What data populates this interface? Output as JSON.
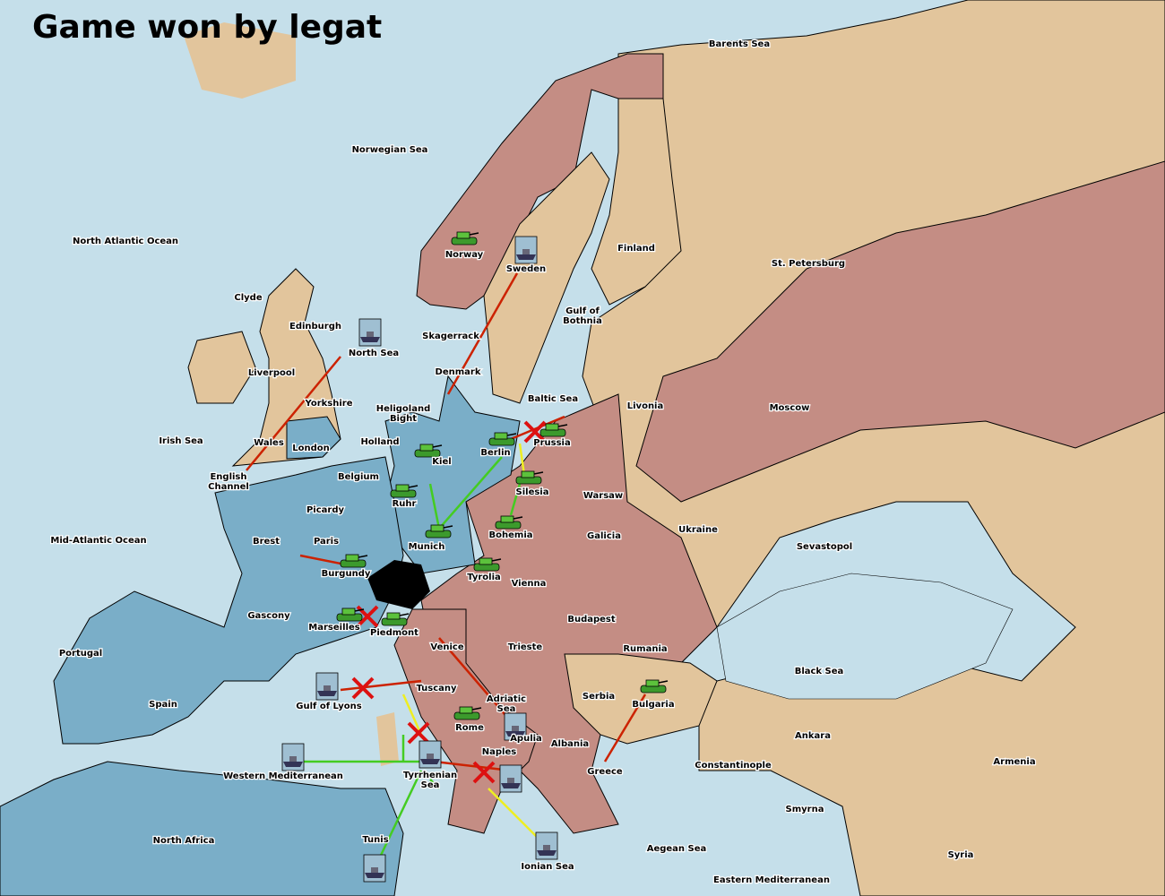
{
  "title": "Game won by legat",
  "colors": {
    "sea": "#c5dfea",
    "neutral_land": "#e2c59c",
    "red_power": "#c48d84",
    "blue_power": "#7aaec8",
    "move": "#cc2200",
    "support": "#44cc22",
    "convoy": "#eeee22",
    "failed": "#dd1111"
  },
  "provinces": [
    "Barents Sea",
    "Norwegian Sea",
    "North Atlantic Ocean",
    "Norway",
    "Sweden",
    "Finland",
    "St. Petersburg",
    "Clyde",
    "Edinburgh",
    "North Sea",
    "Gulf of Bothnia",
    "Skagerrack",
    "Liverpool",
    "Denmark",
    "Baltic Sea",
    "Livonia",
    "Moscow",
    "Yorkshire",
    "Heligoland Bight",
    "Irish Sea",
    "Wales",
    "London",
    "Holland",
    "Kiel",
    "Berlin",
    "Prussia",
    "English Channel",
    "Belgium",
    "Silesia",
    "Warsaw",
    "Ruhr",
    "Picardy",
    "Mid-Atlantic Ocean",
    "Brest",
    "Paris",
    "Munich",
    "Bohemia",
    "Galicia",
    "Ukraine",
    "Sevastopol",
    "Burgundy",
    "Tyrolia",
    "Vienna",
    "Gascony",
    "Budapest",
    "Marseilles",
    "Piedmont",
    "Portugal",
    "Venice",
    "Trieste",
    "Rumania",
    "Spain",
    "Black Sea",
    "Tuscany",
    "Gulf of Lyons",
    "Adriatic Sea",
    "Serbia",
    "Bulgaria",
    "Rome",
    "Apulia",
    "Ankara",
    "Albania",
    "Armenia",
    "Naples",
    "Constantinople",
    "Western Mediterranean",
    "Tyrrhenian Sea",
    "Greece",
    "Smyrna",
    "North Africa",
    "Tunis",
    "Aegean Sea",
    "Syria",
    "Ionian Sea",
    "Eastern Mediterranean"
  ],
  "units": [
    {
      "type": "army",
      "province": "Norway"
    },
    {
      "type": "fleet",
      "province": "Sweden"
    },
    {
      "type": "fleet",
      "province": "North Sea"
    },
    {
      "type": "army",
      "province": "Kiel"
    },
    {
      "type": "army",
      "province": "Berlin"
    },
    {
      "type": "army",
      "province": "Prussia"
    },
    {
      "type": "army",
      "province": "Silesia"
    },
    {
      "type": "army",
      "province": "Ruhr"
    },
    {
      "type": "army",
      "province": "Bohemia"
    },
    {
      "type": "army",
      "province": "Munich"
    },
    {
      "type": "army",
      "province": "Tyrolia"
    },
    {
      "type": "army",
      "province": "Burgundy"
    },
    {
      "type": "army",
      "province": "Marseilles"
    },
    {
      "type": "army",
      "province": "Piedmont"
    },
    {
      "type": "fleet",
      "province": "Gulf of Lyons"
    },
    {
      "type": "army",
      "province": "Rome"
    },
    {
      "type": "fleet",
      "province": "Apulia"
    },
    {
      "type": "fleet",
      "province": "Tyrrhenian Sea"
    },
    {
      "type": "fleet",
      "province": "Naples"
    },
    {
      "type": "fleet",
      "province": "Western Mediterranean"
    },
    {
      "type": "fleet",
      "province": "Tunis"
    },
    {
      "type": "fleet",
      "province": "Ionian Sea"
    },
    {
      "type": "army",
      "province": "Bulgaria"
    }
  ]
}
